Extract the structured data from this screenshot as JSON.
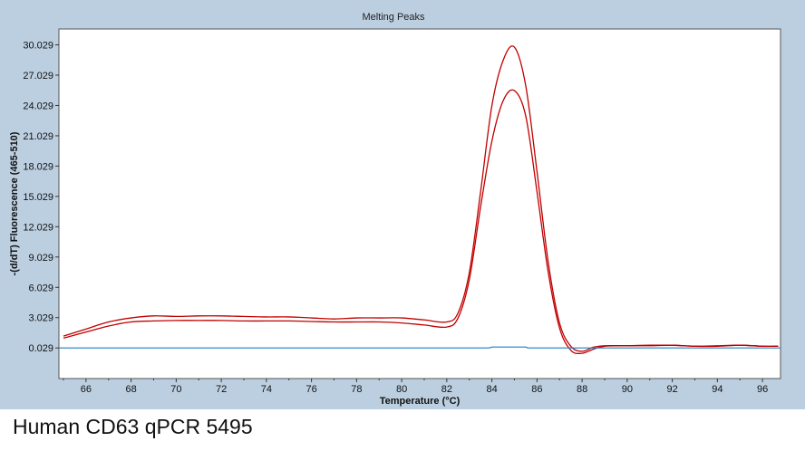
{
  "caption": "Human CD63 qPCR 5495",
  "colors": {
    "panel_background": "#bccfe1",
    "plot_background": "#ffffff",
    "sample_curve": "#c00000",
    "baseline_curve": "#1f7fc4"
  },
  "chart_data": {
    "type": "line",
    "title": "Melting Peaks",
    "xlabel": "Temperature (°C)",
    "ylabel": "-(d/dT) Fluorescence (465-510)",
    "xlim": [
      64.8,
      96.8
    ],
    "ylim": [
      -3.0,
      31.6
    ],
    "xticks": [
      66,
      68,
      70,
      72,
      74,
      76,
      78,
      80,
      82,
      84,
      86,
      88,
      90,
      92,
      94,
      96
    ],
    "yticks": [
      0.029,
      3.029,
      6.029,
      9.029,
      12.029,
      15.029,
      18.029,
      21.029,
      24.029,
      27.029,
      30.029
    ],
    "ytick_labels": [
      "0.029",
      "3.029",
      "6.029",
      "9.029",
      "12.029",
      "15.029",
      "18.029",
      "21.029",
      "24.029",
      "27.029",
      "30.029"
    ],
    "grid": false,
    "legend": "none",
    "series": [
      {
        "color": "#c00000",
        "x": [
          65,
          66,
          67,
          68,
          69,
          70,
          71,
          72,
          73,
          74,
          75,
          76,
          77,
          78,
          79,
          80,
          81,
          82,
          82.5,
          83,
          83.5,
          84,
          84.5,
          85,
          85.5,
          86,
          86.5,
          87,
          87.5,
          88,
          88.5,
          89,
          90,
          91,
          92,
          93,
          94,
          95,
          96,
          96.7
        ],
        "y": [
          1.2,
          1.9,
          2.6,
          3.0,
          3.2,
          3.15,
          3.2,
          3.2,
          3.15,
          3.1,
          3.1,
          3.0,
          2.9,
          3.0,
          3.0,
          3.0,
          2.8,
          2.6,
          3.5,
          7.5,
          15.5,
          24.0,
          28.5,
          29.8,
          26.0,
          17.5,
          8.5,
          2.5,
          0.2,
          -0.3,
          0.1,
          0.25,
          0.25,
          0.3,
          0.3,
          0.2,
          0.2,
          0.3,
          0.2,
          0.2
        ]
      },
      {
        "color": "#c00000",
        "x": [
          65,
          66,
          67,
          68,
          69,
          70,
          71,
          72,
          73,
          74,
          75,
          76,
          77,
          78,
          79,
          80,
          81,
          82,
          82.5,
          83,
          83.5,
          84,
          84.5,
          85,
          85.5,
          86,
          86.5,
          87,
          87.5,
          88,
          88.5,
          89,
          90,
          91,
          92,
          93,
          94,
          95,
          96,
          96.7
        ],
        "y": [
          1.0,
          1.6,
          2.2,
          2.6,
          2.7,
          2.75,
          2.75,
          2.75,
          2.7,
          2.7,
          2.7,
          2.65,
          2.6,
          2.6,
          2.6,
          2.5,
          2.3,
          2.1,
          3.0,
          6.8,
          14.0,
          20.5,
          24.5,
          25.5,
          23.0,
          15.5,
          7.5,
          2.0,
          -0.2,
          -0.5,
          -0.1,
          0.2,
          0.25,
          0.25,
          0.3,
          0.2,
          0.25,
          0.3,
          0.2,
          0.2
        ]
      },
      {
        "color": "#1f7fc4",
        "x": [
          64.8,
          83.9,
          84.0,
          85.5,
          85.6,
          96.8
        ],
        "y": [
          0.029,
          0.029,
          0.12,
          0.12,
          0.029,
          0.029
        ]
      }
    ]
  }
}
